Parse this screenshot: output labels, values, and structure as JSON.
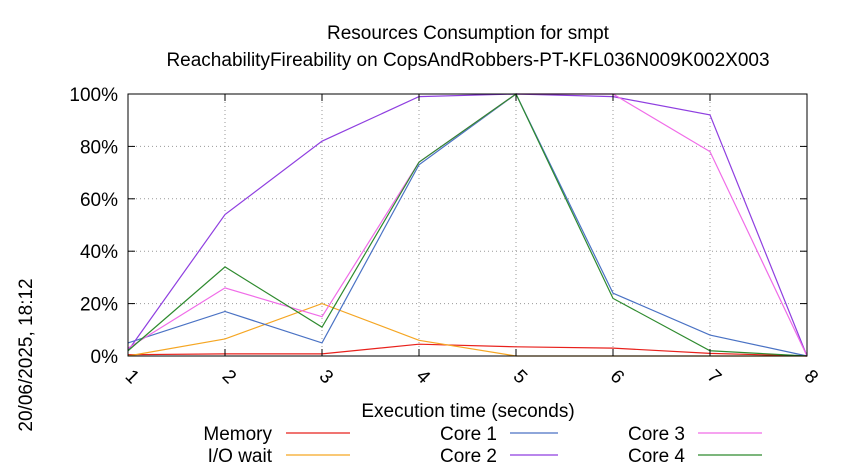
{
  "chart_data": {
    "type": "line",
    "title": "Resources Consumption for smpt",
    "subtitle": "ReachabilityFireability on CopsAndRobbers-PT-KFL036N009K002X003",
    "xlabel": "Execution time (seconds)",
    "ylabel": "",
    "side_label": "20/06/2025, 18:12",
    "x": [
      1,
      2,
      3,
      4,
      5,
      6,
      7,
      8
    ],
    "x_tick_labels": [
      "1",
      "2",
      "3",
      "4",
      "5",
      "6",
      "7",
      "8"
    ],
    "xlim": [
      1,
      8
    ],
    "ylim": [
      0,
      100
    ],
    "y_ticks": [
      0,
      20,
      40,
      60,
      80,
      100
    ],
    "y_tick_labels": [
      "0%",
      "20%",
      "40%",
      "60%",
      "80%",
      "100%"
    ],
    "grid": true,
    "legend_position": "bottom",
    "series": [
      {
        "name": "Memory",
        "color": "#e8211c",
        "values": [
          0.5,
          0.8,
          0.8,
          4.5,
          3.5,
          3,
          1,
          0
        ]
      },
      {
        "name": "I/O wait",
        "color": "#f5a623",
        "values": [
          0,
          6.5,
          20,
          6,
          0,
          0,
          0,
          0
        ]
      },
      {
        "name": "Core 1",
        "color": "#4a72c4",
        "values": [
          5,
          17,
          5,
          73,
          100,
          24,
          8,
          0
        ]
      },
      {
        "name": "Core 2",
        "color": "#8f3fe0",
        "values": [
          2,
          54,
          82,
          99,
          100,
          99,
          92,
          0
        ]
      },
      {
        "name": "Core 3",
        "color": "#f06ce8",
        "values": [
          3,
          26,
          15,
          74,
          100,
          100,
          78,
          0
        ]
      },
      {
        "name": "Core 4",
        "color": "#2e8a2e",
        "values": [
          2,
          34,
          11,
          74,
          100,
          22,
          2,
          0
        ]
      }
    ]
  }
}
